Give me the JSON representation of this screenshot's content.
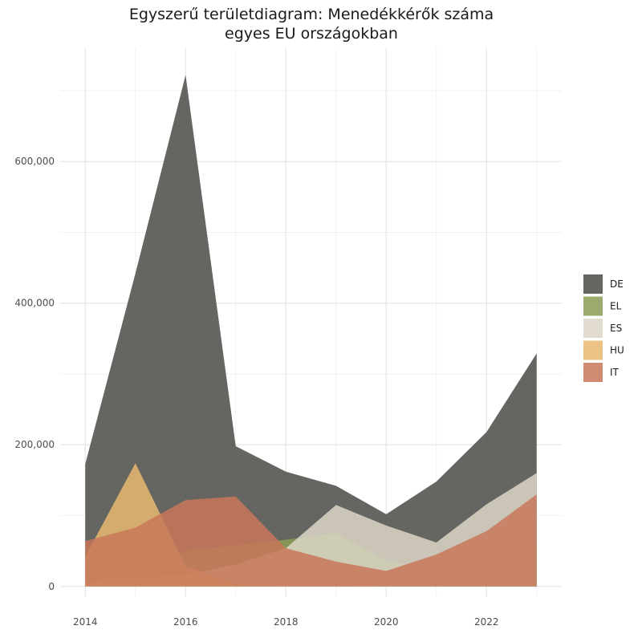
{
  "chart_data": {
    "type": "area",
    "title_lines": [
      "Egyszerű területdiagram: Menedékkérők száma",
      "egyes EU országokban"
    ],
    "xlabel": "",
    "ylabel": "",
    "x": [
      2014,
      2015,
      2016,
      2017,
      2018,
      2019,
      2020,
      2021,
      2022,
      2023
    ],
    "xlim": [
      2013.5,
      2023.5
    ],
    "ylim": [
      -15000,
      760000
    ],
    "x_ticks": [
      2014,
      2016,
      2018,
      2020,
      2022
    ],
    "x_tick_labels": [
      "2014",
      "2016",
      "2018",
      "2020",
      "2022"
    ],
    "y_ticks": [
      0,
      200000,
      400000,
      600000
    ],
    "y_tick_labels": [
      "0",
      "200,000",
      "400,000",
      "600,000"
    ],
    "grid": true,
    "legend_position": "right",
    "series": [
      {
        "name": "DE",
        "color": "#4a4b45",
        "values": [
          173000,
          442000,
          722000,
          198000,
          162000,
          142000,
          102000,
          148000,
          218000,
          329000
        ]
      },
      {
        "name": "EL",
        "color": "#8a9c53",
        "values": [
          9000,
          13000,
          51000,
          58000,
          66000,
          75000,
          37000,
          22000,
          29000,
          58000
        ]
      },
      {
        "name": "ES",
        "color": "#dcd6c7",
        "values": [
          6000,
          15000,
          16000,
          31000,
          54000,
          115000,
          86000,
          62000,
          116000,
          160000
        ]
      },
      {
        "name": "HU",
        "color": "#e8b870",
        "values": [
          42000,
          174000,
          29000,
          3000,
          700,
          500,
          100,
          40,
          45,
          30
        ]
      },
      {
        "name": "IT",
        "color": "#c8775a",
        "values": [
          64000,
          83000,
          122000,
          127000,
          54000,
          35000,
          22000,
          45000,
          78000,
          130000
        ]
      }
    ]
  }
}
